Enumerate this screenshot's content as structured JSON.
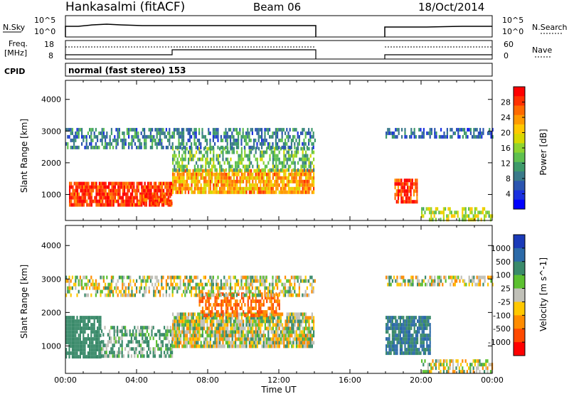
{
  "header": {
    "station": "Hankasalmi (fitACF)",
    "beam": "Beam 06",
    "date": "18/Oct/2014"
  },
  "noise_panel": {
    "left_label": "N.Sky",
    "right_label": "N.Search",
    "left_ticks": [
      "10^5",
      "10^0"
    ],
    "right_ticks": [
      "10^5",
      "10^0"
    ]
  },
  "freq_panel": {
    "left_label_1": "Freq.",
    "left_label_2": "[MHz]",
    "right_label": "Nave",
    "left_ticks": [
      "18",
      "8"
    ],
    "right_ticks": [
      "60",
      "0"
    ]
  },
  "cpid": {
    "label": "CPID",
    "text": "normal (fast stereo) 153"
  },
  "axes": {
    "xlabel": "Time UT",
    "x_ticks": [
      "00:00",
      "04:00",
      "08:00",
      "12:00",
      "16:00",
      "20:00",
      "00:00"
    ],
    "ylabel": "Slant Range [km]",
    "y_ticks": [
      "4000",
      "3000",
      "2000",
      "1000"
    ]
  },
  "power_scale": {
    "label": "Power [dB]",
    "ticks": [
      "28",
      "24",
      "20",
      "16",
      "12",
      "8",
      "4"
    ],
    "colors": [
      "#ff0000",
      "#ff3000",
      "#ff6a00",
      "#ff9a00",
      "#ffc800",
      "#d8d800",
      "#8ed430",
      "#5fc050",
      "#3e9a6a",
      "#3a7a8a",
      "#2b55b0",
      "#1a30e0",
      "#0000ff"
    ]
  },
  "velocity_scale": {
    "label": "Velocity [m s^-1]",
    "ticks": [
      "1000",
      "500",
      "100",
      "25",
      "-25",
      "-100",
      "-500",
      "-1000"
    ],
    "colors": [
      "#1a3ab8",
      "#2c6aa8",
      "#3a8a6a",
      "#5cc030",
      "#c0c0b8",
      "#ffc800",
      "#ff8c00",
      "#ff4a00",
      "#ff0000"
    ]
  },
  "chart_data": [
    {
      "type": "heatmap",
      "title": "Power",
      "xlabel": "Time UT",
      "ylabel": "Slant Range [km]",
      "xlim": [
        0,
        24
      ],
      "ylim": [
        180,
        4600
      ],
      "colorbar": "Power [dB]",
      "observing_intervals_hours": [
        [
          0,
          14.1
        ],
        [
          18,
          24
        ]
      ],
      "echo_regions": [
        {
          "t": [
            0.2,
            6.0
          ],
          "range": [
            700,
            1400
          ],
          "value_db": 28
        },
        {
          "t": [
            4.0,
            6.0
          ],
          "range": [
            700,
            1000
          ],
          "value_db": 26
        },
        {
          "t": [
            6.0,
            14.0
          ],
          "range": [
            1100,
            1800
          ],
          "value_db": 22
        },
        {
          "t": [
            6.0,
            14.0
          ],
          "range": [
            1800,
            2500
          ],
          "value_db": 12
        },
        {
          "t": [
            0.0,
            14.0
          ],
          "range": [
            2500,
            3100
          ],
          "value_db": 8
        },
        {
          "t": [
            18.5,
            19.8
          ],
          "range": [
            800,
            1500
          ],
          "value_db": 28
        },
        {
          "t": [
            18.0,
            24.0
          ],
          "range": [
            2800,
            3100
          ],
          "value_db": 6
        },
        {
          "t": [
            20.0,
            24.0
          ],
          "range": [
            200,
            600
          ],
          "value_db": 16
        }
      ]
    },
    {
      "type": "heatmap",
      "title": "Velocity",
      "xlabel": "Time UT",
      "ylabel": "Slant Range [km]",
      "xlim": [
        0,
        24
      ],
      "ylim": [
        180,
        4600
      ],
      "colorbar": "Velocity [m s^-1]",
      "observing_intervals_hours": [
        [
          0,
          14.1
        ],
        [
          18,
          24
        ]
      ],
      "echo_regions": [
        {
          "t": [
            0.0,
            2.0
          ],
          "range": [
            700,
            1900
          ],
          "value_ms": 200
        },
        {
          "t": [
            2.0,
            6.0
          ],
          "range": [
            700,
            1600
          ],
          "value_ms": 80
        },
        {
          "t": [
            6.0,
            14.0
          ],
          "range": [
            1000,
            2000
          ],
          "value_ms": 0
        },
        {
          "t": [
            7.5,
            12.0
          ],
          "range": [
            1900,
            2600
          ],
          "value_ms": -300
        },
        {
          "t": [
            0.0,
            14.0
          ],
          "range": [
            2500,
            3100
          ],
          "value_ms": 0
        },
        {
          "t": [
            18.0,
            20.5
          ],
          "range": [
            800,
            1900
          ],
          "value_ms": 300
        },
        {
          "t": [
            18.0,
            24.0
          ],
          "range": [
            2800,
            3100
          ],
          "value_ms": 0
        },
        {
          "t": [
            20.0,
            24.0
          ],
          "range": [
            200,
            600
          ],
          "value_ms": 0
        }
      ]
    }
  ]
}
